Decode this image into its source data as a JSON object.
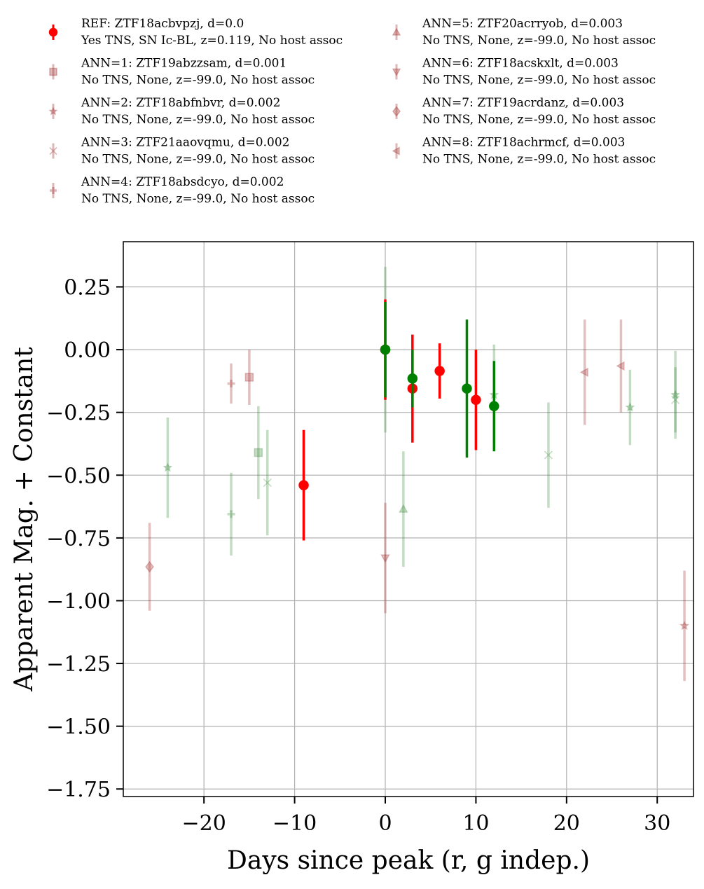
{
  "chart_data": {
    "type": "scatter",
    "xlabel": "Days since peak (r, g indep.)",
    "ylabel": "Apparent Mag. + Constant",
    "xlim": [
      -28.9,
      34
    ],
    "ylim": [
      -1.78,
      0.43
    ],
    "y_inverted": false,
    "grid": true,
    "legend_placement": "top, above plot, two columns",
    "xticks": [
      -20,
      -10,
      0,
      10,
      20,
      30
    ],
    "xtick_labels": [
      "−20",
      "−10",
      "0",
      "10",
      "20",
      "30"
    ],
    "yticks": [
      0.25,
      0.0,
      -0.25,
      -0.5,
      -0.75,
      -1.0,
      -1.25,
      -1.5,
      -1.75
    ],
    "ytick_labels": [
      "0.25",
      "0.00",
      "−0.25",
      "−0.50",
      "−0.75",
      "−1.00",
      "−1.25",
      "−1.50",
      "−1.75"
    ],
    "band_colors": {
      "r": "#ff0000",
      "g": "#008000",
      "ann_r": "#a03030",
      "ann_g": "#3a8a3a"
    },
    "legend": [
      {
        "line1": "REF: ZTF18acbvpzj, d=0.0",
        "line2": "Yes TNS, SN Ic-BL, z=0.119, No host assoc",
        "marker": "circle",
        "color": "#ff0000"
      },
      {
        "line1": "ANN=1: ZTF19abzzsam, d=0.001",
        "line2": "No TNS, None, z=-99.0, No host assoc",
        "marker": "square",
        "color": "#a03030"
      },
      {
        "line1": "ANN=2: ZTF18abfnbvr, d=0.002",
        "line2": "No TNS, None, z=-99.0, No host assoc",
        "marker": "star",
        "color": "#a03030"
      },
      {
        "line1": "ANN=3: ZTF21aaovqmu, d=0.002",
        "line2": "No TNS, None, z=-99.0, No host assoc",
        "marker": "x",
        "color": "#a03030"
      },
      {
        "line1": "ANN=4: ZTF18absdcyo, d=0.002",
        "line2": "No TNS, None, z=-99.0, No host assoc",
        "marker": "plus",
        "color": "#a03030"
      },
      {
        "line1": "ANN=5: ZTF20acrryob, d=0.003",
        "line2": "No TNS, None, z=-99.0, No host assoc",
        "marker": "triangle-up",
        "color": "#a03030"
      },
      {
        "line1": "ANN=6: ZTF18acskxlt, d=0.003",
        "line2": "No TNS, None, z=-99.0, No host assoc",
        "marker": "triangle-down",
        "color": "#a03030"
      },
      {
        "line1": "ANN=7: ZTF19acrdanz, d=0.003",
        "line2": "No TNS, None, z=-99.0, No host assoc",
        "marker": "diamond",
        "color": "#a03030"
      },
      {
        "line1": "ANN=8: ZTF18achrmcf, d=0.003",
        "line2": "No TNS, None, z=-99.0, No host assoc",
        "marker": "triangle-left",
        "color": "#a03030"
      }
    ],
    "series": [
      {
        "name": "REF: ZTF18acbvpzj, d=0.0",
        "band": "r",
        "marker": "circle",
        "alpha": 1.0,
        "points": [
          {
            "x": 0,
            "y": 0.0,
            "err": 0.2
          },
          {
            "x": 3,
            "y": -0.155,
            "err": 0.215
          },
          {
            "x": 6,
            "y": -0.085,
            "err": 0.11
          },
          {
            "x": 10,
            "y": -0.2,
            "err": 0.2
          },
          {
            "x": -9,
            "y": -0.54,
            "err": 0.22
          }
        ]
      },
      {
        "name": "REF: ZTF18acbvpzj, d=0.0",
        "band": "g",
        "marker": "circle",
        "alpha": 1.0,
        "points": [
          {
            "x": 0,
            "y": 0.0,
            "err": 0.19
          },
          {
            "x": 3,
            "y": -0.115,
            "err": 0.115
          },
          {
            "x": 9,
            "y": -0.155,
            "err": 0.275
          },
          {
            "x": 12,
            "y": -0.225,
            "err": 0.18
          }
        ]
      },
      {
        "name": "ANN=1: ZTF19abzzsam, d=0.001",
        "band": "r",
        "marker": "square",
        "alpha": 0.3,
        "points": [
          {
            "x": -15,
            "y": -0.11,
            "err": 0.11
          }
        ]
      },
      {
        "name": "ANN=1: ZTF19abzzsam, d=0.001",
        "band": "g",
        "marker": "square",
        "alpha": 0.3,
        "points": [
          {
            "x": -14,
            "y": -0.41,
            "err": 0.185
          }
        ]
      },
      {
        "name": "ANN=2: ZTF18abfnbvr, d=0.002",
        "band": "r",
        "marker": "star",
        "alpha": 0.3,
        "points": [
          {
            "x": 33,
            "y": -1.1,
            "err": 0.22
          }
        ]
      },
      {
        "name": "ANN=2: ZTF18abfnbvr, d=0.002",
        "band": "g",
        "marker": "star",
        "alpha": 0.3,
        "points": [
          {
            "x": -24,
            "y": -0.47,
            "err": 0.2
          },
          {
            "x": 12,
            "y": -0.18,
            "err": 0.2
          },
          {
            "x": 27,
            "y": -0.23,
            "err": 0.15
          },
          {
            "x": 32,
            "y": -0.18,
            "err": 0.175
          }
        ]
      },
      {
        "name": "ANN=3: ZTF21aaovqmu, d=0.002",
        "band": "g",
        "marker": "x",
        "alpha": 0.3,
        "points": [
          {
            "x": -13,
            "y": -0.53,
            "err": 0.21
          },
          {
            "x": 18,
            "y": -0.42,
            "err": 0.21
          },
          {
            "x": 32,
            "y": -0.2,
            "err": 0.13
          }
        ]
      },
      {
        "name": "ANN=4: ZTF18absdcyo, d=0.002",
        "band": "r",
        "marker": "plus",
        "alpha": 0.3,
        "points": [
          {
            "x": -17,
            "y": -0.135,
            "err": 0.08
          }
        ]
      },
      {
        "name": "ANN=4: ZTF18absdcyo, d=0.002",
        "band": "g",
        "marker": "plus",
        "alpha": 0.3,
        "points": [
          {
            "x": -17,
            "y": -0.655,
            "err": 0.165
          }
        ]
      },
      {
        "name": "ANN=5: ZTF20acrryob, d=0.003",
        "band": "g",
        "marker": "triangle-up",
        "alpha": 0.3,
        "points": [
          {
            "x": 2,
            "y": -0.635,
            "err": 0.23
          }
        ]
      },
      {
        "name": "ANN=6: ZTF18acskxlt, d=0.003",
        "band": "r",
        "marker": "triangle-down",
        "alpha": 0.3,
        "points": [
          {
            "x": 0,
            "y": -0.83,
            "err": 0.22
          }
        ]
      },
      {
        "name": "ANN=6: ZTF18acskxlt, d=0.003",
        "band": "g",
        "marker": "triangle-down",
        "alpha": 0.3,
        "points": [
          {
            "x": 0,
            "y": 0.0,
            "err": 0.33
          }
        ]
      },
      {
        "name": "ANN=7: ZTF19acrdanz, d=0.003",
        "band": "r",
        "marker": "diamond",
        "alpha": 0.3,
        "points": [
          {
            "x": -26,
            "y": -0.865,
            "err": 0.175
          }
        ]
      },
      {
        "name": "ANN=8: ZTF18achrmcf, d=0.003",
        "band": "r",
        "marker": "triangle-left",
        "alpha": 0.3,
        "points": [
          {
            "x": 22,
            "y": -0.09,
            "err": 0.21
          },
          {
            "x": 26,
            "y": -0.065,
            "err": 0.185
          }
        ]
      }
    ]
  }
}
